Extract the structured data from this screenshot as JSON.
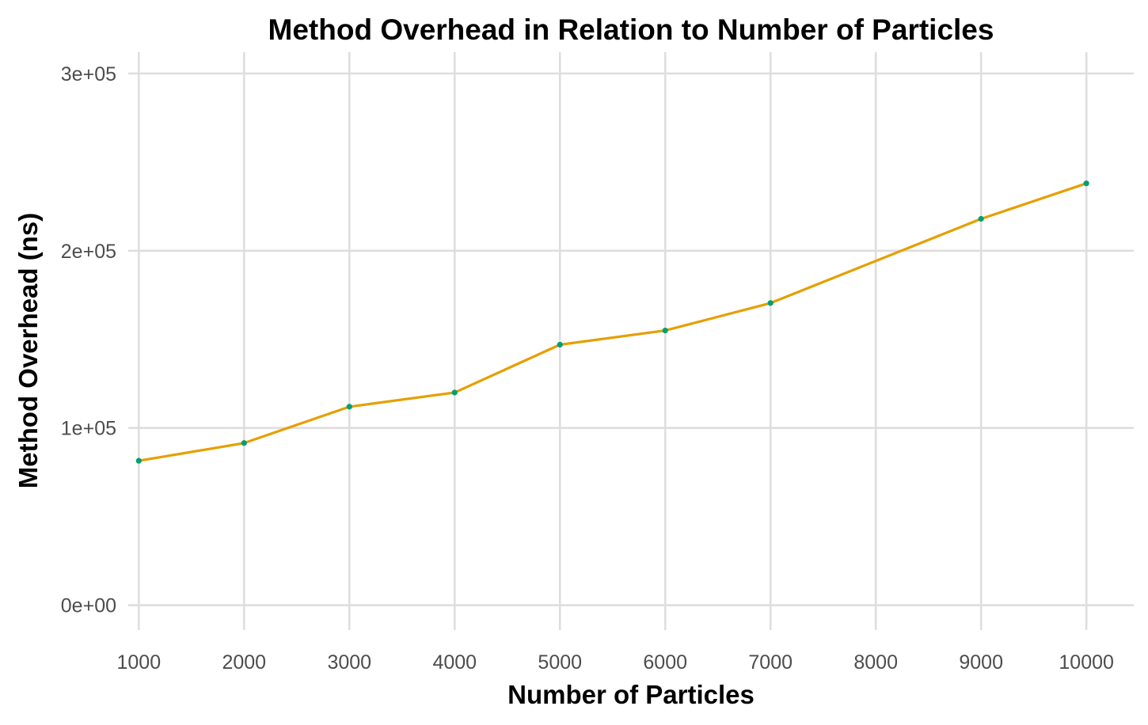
{
  "chart_data": {
    "type": "line",
    "title": "Method Overhead in Relation to Number of Particles",
    "xlabel": "Number of Particles",
    "ylabel": "Method Overhead (ns)",
    "x_ticks": [
      1000,
      2000,
      3000,
      4000,
      5000,
      6000,
      7000,
      8000,
      9000,
      10000
    ],
    "y_ticks": [
      0,
      100000,
      200000,
      300000
    ],
    "y_tick_labels": [
      "0e+00",
      "1e+05",
      "2e+05",
      "3e+05"
    ],
    "xlim": [
      900,
      10450
    ],
    "ylim": [
      -14000,
      312000
    ],
    "grid": true,
    "legend": "none",
    "series": [
      {
        "x": [
          1000,
          2000,
          3000,
          4000,
          5000,
          6000,
          7000,
          9000,
          10000
        ],
        "values": [
          81500,
          91500,
          112000,
          120000,
          147000,
          155000,
          170500,
          218000,
          238000
        ],
        "line_color": "#E69F00",
        "point_color": "#009E73"
      }
    ]
  }
}
